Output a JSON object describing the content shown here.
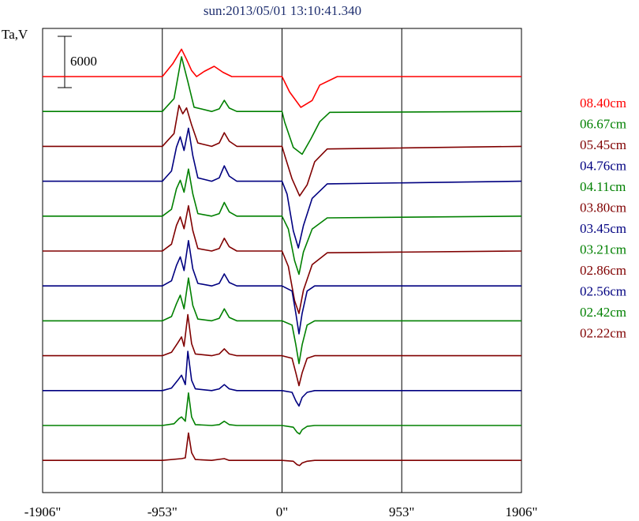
{
  "chart_data": {
    "type": "line",
    "title": "sun:2013/05/01 13:10:41.340",
    "ylabel": "Ta,V",
    "scale_bar_label": "6000",
    "scale_bar_value": 6000,
    "xlim": [
      -1906,
      1906
    ],
    "x_ticks": [
      {
        "value": -1906,
        "label": "-1906\""
      },
      {
        "value": -953,
        "label": "-953\""
      },
      {
        "value": 0,
        "label": "0\""
      },
      {
        "value": 953,
        "label": "953\""
      },
      {
        "value": 1906,
        "label": "1906\""
      }
    ],
    "vertical_lines": [
      -953,
      0,
      953
    ],
    "legend_position": "right",
    "series": [
      {
        "name": "08.40cm",
        "color": "#ff0000",
        "points": [
          [
            -1906,
            0
          ],
          [
            -953,
            0
          ],
          [
            -870,
            1500
          ],
          [
            -800,
            3200
          ],
          [
            -760,
            2000
          ],
          [
            -720,
            700
          ],
          [
            -680,
            0
          ],
          [
            -620,
            600
          ],
          [
            -540,
            1200
          ],
          [
            -470,
            500
          ],
          [
            -400,
            0
          ],
          [
            0,
            0
          ],
          [
            60,
            -1800
          ],
          [
            150,
            -3600
          ],
          [
            240,
            -2800
          ],
          [
            300,
            -1000
          ],
          [
            440,
            0
          ],
          [
            1906,
            0
          ]
        ]
      },
      {
        "name": "06.67cm",
        "color": "#008000",
        "points": [
          [
            -1906,
            0
          ],
          [
            -953,
            0
          ],
          [
            -860,
            1500
          ],
          [
            -800,
            6400
          ],
          [
            -750,
            3500
          ],
          [
            -700,
            500
          ],
          [
            -560,
            0
          ],
          [
            -500,
            300
          ],
          [
            -460,
            1300
          ],
          [
            -420,
            400
          ],
          [
            -360,
            0
          ],
          [
            0,
            0
          ],
          [
            20,
            -1200
          ],
          [
            90,
            -4200
          ],
          [
            160,
            -5000
          ],
          [
            230,
            -3200
          ],
          [
            300,
            -1200
          ],
          [
            380,
            -100
          ],
          [
            1906,
            0
          ]
        ]
      },
      {
        "name": "05.45cm",
        "color": "#800000",
        "points": [
          [
            -1906,
            0
          ],
          [
            -953,
            0
          ],
          [
            -860,
            1500
          ],
          [
            -820,
            4800
          ],
          [
            -790,
            3800
          ],
          [
            -760,
            4500
          ],
          [
            -720,
            2500
          ],
          [
            -670,
            400
          ],
          [
            -560,
            0
          ],
          [
            -500,
            400
          ],
          [
            -460,
            1600
          ],
          [
            -420,
            600
          ],
          [
            -360,
            0
          ],
          [
            0,
            0
          ],
          [
            20,
            -1000
          ],
          [
            80,
            -3800
          ],
          [
            140,
            -5800
          ],
          [
            200,
            -4500
          ],
          [
            260,
            -1800
          ],
          [
            360,
            -300
          ],
          [
            1906,
            0
          ]
        ]
      },
      {
        "name": "04.76cm",
        "color": "#000080",
        "points": [
          [
            -1906,
            0
          ],
          [
            -953,
            0
          ],
          [
            -880,
            1200
          ],
          [
            -840,
            4000
          ],
          [
            -810,
            5200
          ],
          [
            -780,
            3600
          ],
          [
            -745,
            6200
          ],
          [
            -710,
            3000
          ],
          [
            -670,
            400
          ],
          [
            -560,
            0
          ],
          [
            -500,
            400
          ],
          [
            -460,
            1800
          ],
          [
            -420,
            600
          ],
          [
            -360,
            0
          ],
          [
            0,
            0
          ],
          [
            40,
            -1500
          ],
          [
            90,
            -5800
          ],
          [
            130,
            -7800
          ],
          [
            170,
            -5200
          ],
          [
            240,
            -2000
          ],
          [
            360,
            -300
          ],
          [
            1906,
            0
          ]
        ]
      },
      {
        "name": "04.11cm",
        "color": "#008000",
        "points": [
          [
            -1906,
            0
          ],
          [
            -953,
            0
          ],
          [
            -880,
            800
          ],
          [
            -840,
            3200
          ],
          [
            -810,
            4200
          ],
          [
            -780,
            2800
          ],
          [
            -745,
            5500
          ],
          [
            -710,
            2600
          ],
          [
            -670,
            300
          ],
          [
            -560,
            0
          ],
          [
            -500,
            300
          ],
          [
            -460,
            1600
          ],
          [
            -420,
            500
          ],
          [
            -360,
            0
          ],
          [
            0,
            0
          ],
          [
            50,
            -1500
          ],
          [
            100,
            -5200
          ],
          [
            135,
            -6800
          ],
          [
            170,
            -4200
          ],
          [
            240,
            -1500
          ],
          [
            360,
            -200
          ],
          [
            1906,
            0
          ]
        ]
      },
      {
        "name": "03.80cm",
        "color": "#800000",
        "points": [
          [
            -1906,
            0
          ],
          [
            -953,
            0
          ],
          [
            -880,
            800
          ],
          [
            -840,
            3000
          ],
          [
            -810,
            4000
          ],
          [
            -780,
            2600
          ],
          [
            -745,
            5300
          ],
          [
            -710,
            2400
          ],
          [
            -670,
            300
          ],
          [
            -560,
            0
          ],
          [
            -500,
            300
          ],
          [
            -460,
            1500
          ],
          [
            -420,
            500
          ],
          [
            -360,
            0
          ],
          [
            0,
            0
          ],
          [
            50,
            -1800
          ],
          [
            100,
            -5800
          ],
          [
            135,
            -7300
          ],
          [
            170,
            -4600
          ],
          [
            240,
            -1600
          ],
          [
            360,
            -200
          ],
          [
            1906,
            0
          ]
        ]
      },
      {
        "name": "03.45cm",
        "color": "#000080",
        "points": [
          [
            -1906,
            0
          ],
          [
            -953,
            0
          ],
          [
            -880,
            600
          ],
          [
            -840,
            2400
          ],
          [
            -810,
            3400
          ],
          [
            -780,
            1800
          ],
          [
            -745,
            5300
          ],
          [
            -710,
            2000
          ],
          [
            -670,
            300
          ],
          [
            -560,
            0
          ],
          [
            -500,
            300
          ],
          [
            -460,
            1400
          ],
          [
            -420,
            400
          ],
          [
            -360,
            0
          ],
          [
            0,
            0
          ],
          [
            80,
            -600
          ],
          [
            110,
            -3200
          ],
          [
            135,
            -5600
          ],
          [
            160,
            -3200
          ],
          [
            200,
            -600
          ],
          [
            260,
            0
          ],
          [
            1906,
            0
          ]
        ]
      },
      {
        "name": "03.21cm",
        "color": "#008000",
        "points": [
          [
            -1906,
            0
          ],
          [
            -953,
            0
          ],
          [
            -880,
            500
          ],
          [
            -840,
            2000
          ],
          [
            -810,
            3000
          ],
          [
            -780,
            1400
          ],
          [
            -745,
            5000
          ],
          [
            -710,
            1800
          ],
          [
            -670,
            200
          ],
          [
            -560,
            0
          ],
          [
            -500,
            300
          ],
          [
            -460,
            1400
          ],
          [
            -420,
            400
          ],
          [
            -360,
            0
          ],
          [
            0,
            0
          ],
          [
            80,
            -500
          ],
          [
            110,
            -2800
          ],
          [
            135,
            -5000
          ],
          [
            160,
            -2800
          ],
          [
            200,
            -500
          ],
          [
            260,
            0
          ],
          [
            1906,
            0
          ]
        ]
      },
      {
        "name": "02.86cm",
        "color": "#800000",
        "points": [
          [
            -1906,
            0
          ],
          [
            -953,
            0
          ],
          [
            -880,
            400
          ],
          [
            -830,
            1500
          ],
          [
            -800,
            2200
          ],
          [
            -780,
            1100
          ],
          [
            -750,
            4800
          ],
          [
            -720,
            1400
          ],
          [
            -690,
            200
          ],
          [
            -560,
            0
          ],
          [
            -500,
            200
          ],
          [
            -460,
            800
          ],
          [
            -420,
            200
          ],
          [
            -360,
            0
          ],
          [
            0,
            0
          ],
          [
            80,
            -300
          ],
          [
            110,
            -2000
          ],
          [
            135,
            -3500
          ],
          [
            160,
            -2000
          ],
          [
            200,
            -300
          ],
          [
            260,
            0
          ],
          [
            1906,
            0
          ]
        ]
      },
      {
        "name": "02.56cm",
        "color": "#000080",
        "points": [
          [
            -1906,
            0
          ],
          [
            -953,
            0
          ],
          [
            -880,
            300
          ],
          [
            -830,
            1200
          ],
          [
            -800,
            1800
          ],
          [
            -770,
            700
          ],
          [
            -750,
            4600
          ],
          [
            -720,
            1200
          ],
          [
            -690,
            200
          ],
          [
            -560,
            0
          ],
          [
            -500,
            200
          ],
          [
            -460,
            700
          ],
          [
            -420,
            200
          ],
          [
            -360,
            0
          ],
          [
            0,
            0
          ],
          [
            80,
            -200
          ],
          [
            110,
            -1200
          ],
          [
            135,
            -1800
          ],
          [
            160,
            -800
          ],
          [
            200,
            -200
          ],
          [
            260,
            0
          ],
          [
            1906,
            0
          ]
        ]
      },
      {
        "name": "02.42cm",
        "color": "#008000",
        "points": [
          [
            -1906,
            0
          ],
          [
            -953,
            0
          ],
          [
            -860,
            200
          ],
          [
            -820,
            800
          ],
          [
            -800,
            1000
          ],
          [
            -770,
            500
          ],
          [
            -745,
            3800
          ],
          [
            -720,
            1000
          ],
          [
            -690,
            100
          ],
          [
            -560,
            0
          ],
          [
            -500,
            100
          ],
          [
            -460,
            500
          ],
          [
            -420,
            100
          ],
          [
            -360,
            0
          ],
          [
            0,
            0
          ],
          [
            90,
            -200
          ],
          [
            120,
            -800
          ],
          [
            140,
            -1000
          ],
          [
            160,
            -500
          ],
          [
            200,
            -100
          ],
          [
            260,
            0
          ],
          [
            1906,
            0
          ]
        ]
      },
      {
        "name": "02.22cm",
        "color": "#800000",
        "points": [
          [
            -1906,
            0
          ],
          [
            -953,
            0
          ],
          [
            -800,
            200
          ],
          [
            -770,
            300
          ],
          [
            -745,
            3200
          ],
          [
            -720,
            900
          ],
          [
            -690,
            100
          ],
          [
            -560,
            0
          ],
          [
            -460,
            200
          ],
          [
            -420,
            0
          ],
          [
            0,
            0
          ],
          [
            90,
            -100
          ],
          [
            120,
            -500
          ],
          [
            140,
            -600
          ],
          [
            160,
            -300
          ],
          [
            200,
            -100
          ],
          [
            260,
            0
          ],
          [
            1906,
            0
          ]
        ]
      }
    ]
  }
}
